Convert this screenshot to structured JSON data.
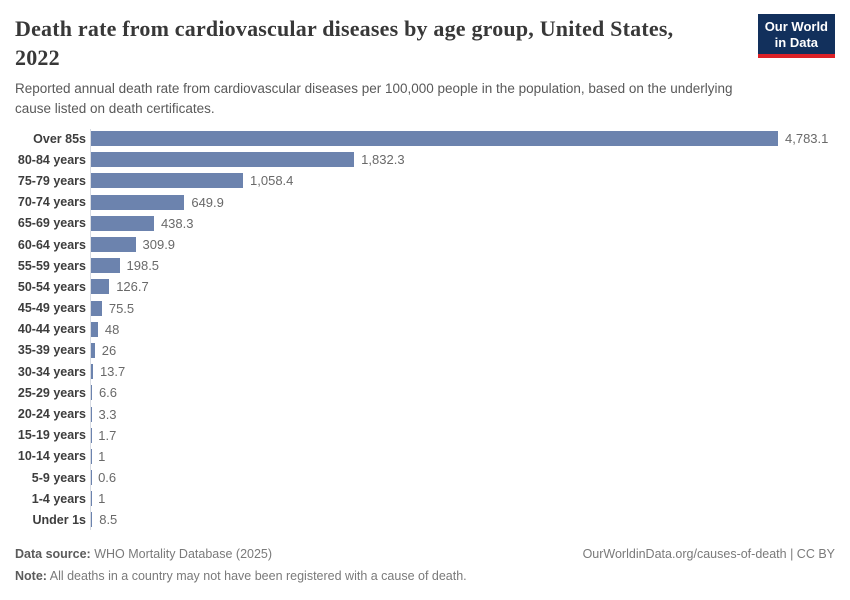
{
  "header": {
    "title_line1": "Death rate from cardiovascular diseases by age group, United States,",
    "title_line2": "2022",
    "subtitle": "Reported annual death rate from cardiovascular diseases per 100,000 people in the population, based on the underlying cause listed on death certificates.",
    "logo": {
      "line1": "Our World",
      "line2": "in Data",
      "bg_color": "#12305c",
      "accent_color": "#dc2127"
    }
  },
  "chart_data": {
    "type": "bar",
    "orientation": "horizontal",
    "title": "Death rate from cardiovascular diseases by age group, United States, 2022",
    "subtitle": "Reported annual death rate from cardiovascular diseases per 100,000 people in the population, based on the underlying cause listed on death certificates.",
    "categories": [
      "Over 85s",
      "80-84 years",
      "75-79 years",
      "70-74 years",
      "65-69 years",
      "60-64 years",
      "55-59 years",
      "50-54 years",
      "45-49 years",
      "40-44 years",
      "35-39 years",
      "30-34 years",
      "25-29 years",
      "20-24 years",
      "15-19 years",
      "10-14 years",
      "5-9 years",
      "1-4 years",
      "Under 1s"
    ],
    "values": [
      4783.1,
      1832.3,
      1058.4,
      649.9,
      438.3,
      309.9,
      198.5,
      126.7,
      75.5,
      48,
      26,
      13.7,
      6.6,
      3.3,
      1.7,
      1,
      0.6,
      1,
      8.5
    ],
    "value_labels": [
      "4,783.1",
      "1,832.3",
      "1,058.4",
      "649.9",
      "438.3",
      "309.9",
      "198.5",
      "126.7",
      "75.5",
      "48",
      "26",
      "13.7",
      "6.6",
      "3.3",
      "1.7",
      "1",
      "0.6",
      "1",
      "8.5"
    ],
    "xlim": [
      0,
      4783.1
    ],
    "bar_color": "#6c83ae",
    "grid": false,
    "legend": "none",
    "xlabel": "",
    "ylabel": ""
  },
  "footer": {
    "source_label": "Data source:",
    "source_text": " WHO Mortality Database (2025)",
    "note_label": "Note:",
    "note_text": " All deaths in a country may not have been registered with a cause of death.",
    "credit": "OurWorldinData.org/causes-of-death | CC BY"
  }
}
